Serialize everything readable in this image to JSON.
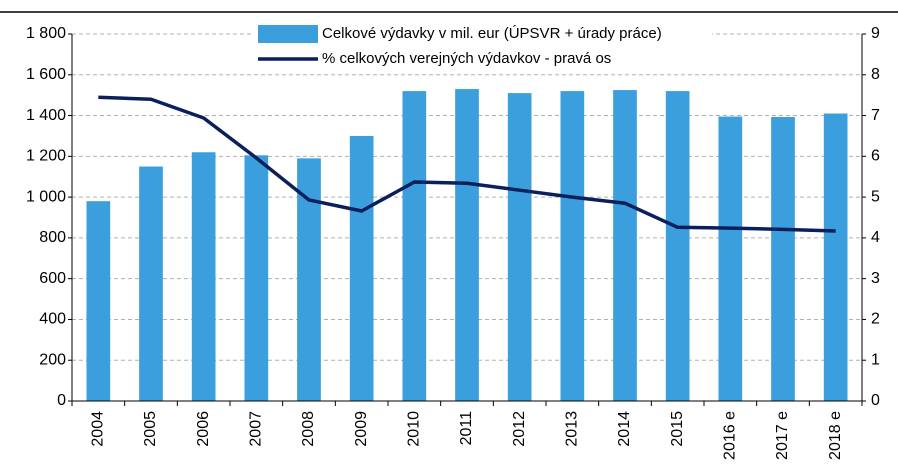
{
  "chart_data": {
    "type": "bar_line",
    "categories": [
      "2004",
      "2005",
      "2006",
      "2007",
      "2008",
      "2009",
      "2010",
      "2011",
      "2012",
      "2013",
      "2014",
      "2015",
      "2016 e",
      "2017 e",
      "2018 e"
    ],
    "series": [
      {
        "name": "Celkové výdavky v mil. eur (ÚPSVR + úrady práce)",
        "type": "bar",
        "color": "#3a9fdc",
        "values": [
          980,
          1150,
          1220,
          1205,
          1190,
          1300,
          1520,
          1530,
          1510,
          1520,
          1525,
          1520,
          1395,
          1393,
          1410
        ]
      },
      {
        "name": "% celkových verejných výdavkov - pravá os",
        "type": "line",
        "axis": "y2",
        "color": "#0b1f5c",
        "values": [
          7.45,
          7.4,
          6.94,
          5.96,
          4.93,
          4.66,
          5.37,
          5.34,
          5.17,
          5.0,
          4.85,
          4.26,
          4.24,
          4.21,
          4.17
        ]
      }
    ],
    "ylim": [
      0,
      1800
    ],
    "yticks": [
      0,
      200,
      400,
      600,
      800,
      {
        "value": 1000,
        "label": "1 000"
      },
      {
        "value": 1200,
        "label": "1 200"
      },
      {
        "value": 1400,
        "label": "1 400"
      },
      {
        "value": 1600,
        "label": "1 600"
      },
      {
        "value": 1800,
        "label": "1 800"
      }
    ],
    "y2lim": [
      0,
      9
    ],
    "y2ticks": [
      0,
      1,
      2,
      3,
      4,
      5,
      6,
      7,
      8,
      9
    ],
    "grid": true
  }
}
